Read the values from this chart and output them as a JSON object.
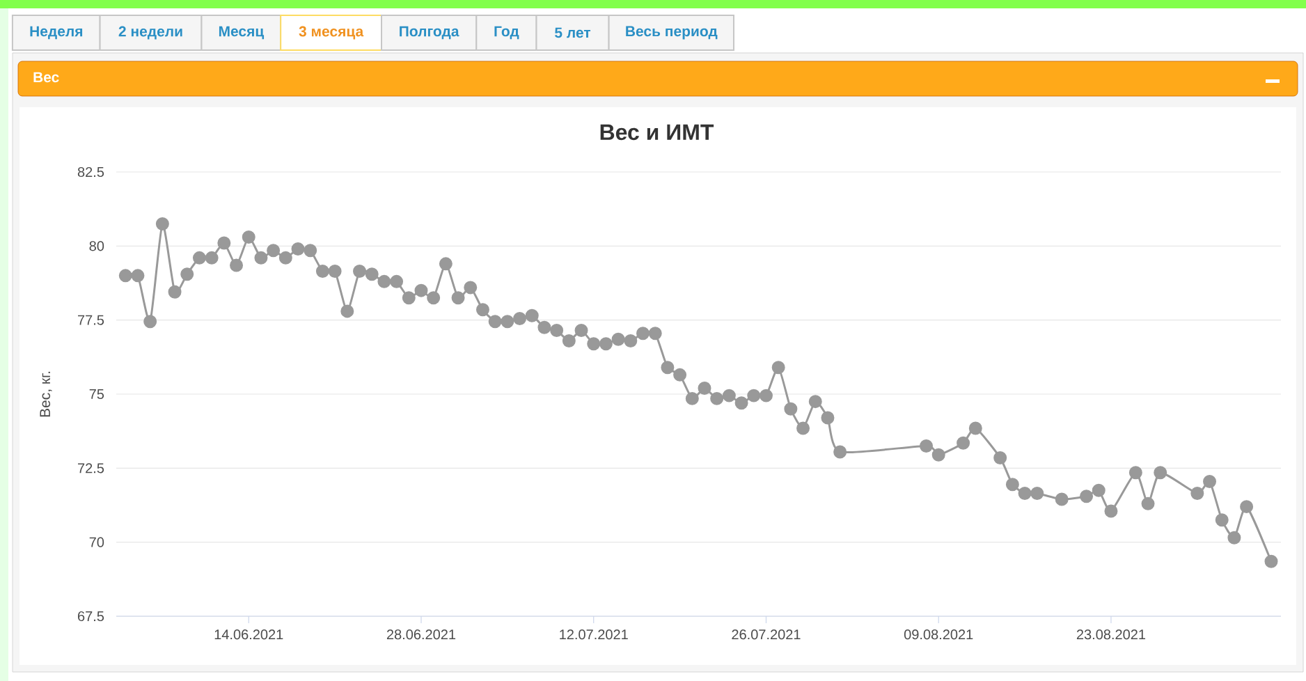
{
  "chart_data": {
    "type": "line",
    "title": "Вес и ИМТ",
    "ylabel": "Вес, кг.",
    "annotations": [
      "Неделя",
      "2 недели",
      "Месяц",
      "3 месяца",
      "Полгода",
      "Год",
      "5 лет",
      "Весь период",
      "Вес"
    ],
    "x": [
      "2021-06-04",
      "2021-06-05",
      "2021-06-06",
      "2021-06-07",
      "2021-06-08",
      "2021-06-09",
      "2021-06-10",
      "2021-06-11",
      "2021-06-12",
      "2021-06-13",
      "2021-06-14",
      "2021-06-15",
      "2021-06-16",
      "2021-06-17",
      "2021-06-18",
      "2021-06-19",
      "2021-06-20",
      "2021-06-21",
      "2021-06-22",
      "2021-06-23",
      "2021-06-24",
      "2021-06-25",
      "2021-06-26",
      "2021-06-27",
      "2021-06-28",
      "2021-06-29",
      "2021-06-30",
      "2021-07-01",
      "2021-07-02",
      "2021-07-03",
      "2021-07-04",
      "2021-07-05",
      "2021-07-06",
      "2021-07-07",
      "2021-07-08",
      "2021-07-09",
      "2021-07-10",
      "2021-07-11",
      "2021-07-12",
      "2021-07-13",
      "2021-07-14",
      "2021-07-15",
      "2021-07-16",
      "2021-07-17",
      "2021-07-18",
      "2021-07-19",
      "2021-07-20",
      "2021-07-21",
      "2021-07-22",
      "2021-07-23",
      "2021-07-24",
      "2021-07-25",
      "2021-07-26",
      "2021-07-27",
      "2021-07-28",
      "2021-07-29",
      "2021-07-30",
      "2021-07-31",
      "2021-08-01",
      "2021-08-08",
      "2021-08-09",
      "2021-08-11",
      "2021-08-12",
      "2021-08-14",
      "2021-08-15",
      "2021-08-16",
      "2021-08-17",
      "2021-08-19",
      "2021-08-21",
      "2021-08-22",
      "2021-08-23",
      "2021-08-25",
      "2021-08-26",
      "2021-08-27",
      "2021-08-30",
      "2021-08-31",
      "2021-09-01",
      "2021-09-02",
      "2021-09-03",
      "2021-09-05"
    ],
    "values": [
      79.0,
      79.0,
      77.45,
      80.75,
      78.45,
      79.05,
      79.6,
      79.6,
      80.1,
      79.35,
      80.3,
      79.6,
      79.85,
      79.6,
      79.9,
      79.85,
      79.15,
      79.15,
      77.8,
      79.15,
      79.05,
      78.8,
      78.8,
      78.25,
      78.5,
      78.25,
      79.4,
      78.25,
      78.6,
      77.85,
      77.45,
      77.45,
      77.55,
      77.65,
      77.25,
      77.15,
      76.8,
      77.15,
      76.7,
      76.7,
      76.85,
      76.8,
      77.05,
      77.05,
      75.9,
      75.65,
      74.85,
      75.2,
      74.85,
      74.95,
      74.7,
      74.95,
      74.95,
      75.9,
      74.5,
      73.85,
      74.75,
      74.2,
      73.05,
      73.25,
      72.95,
      73.35,
      73.85,
      72.85,
      71.95,
      71.65,
      71.65,
      71.45,
      71.55,
      71.75,
      71.05,
      72.35,
      71.3,
      72.35,
      71.65,
      72.05,
      70.75,
      70.15,
      71.2,
      69.35
    ],
    "color": "#999999",
    "marker": "circle",
    "line_style": "solid",
    "grid": "y",
    "xlim": [
      "2021-06-03T06:00",
      "2021-09-05T19:00"
    ],
    "xticks": [
      {
        "value": "2021-06-14",
        "label": "14.06.2021"
      },
      {
        "value": "2021-06-28",
        "label": "28.06.2021"
      },
      {
        "value": "2021-07-12",
        "label": "12.07.2021"
      },
      {
        "value": "2021-07-26",
        "label": "26.07.2021"
      },
      {
        "value": "2021-08-09",
        "label": "09.08.2021"
      },
      {
        "value": "2021-08-23",
        "label": "23.08.2021"
      }
    ],
    "ylim": [
      67.5,
      82.5
    ],
    "yticks": [
      67.5,
      70,
      72.5,
      75,
      77.5,
      80,
      82.5
    ]
  }
}
